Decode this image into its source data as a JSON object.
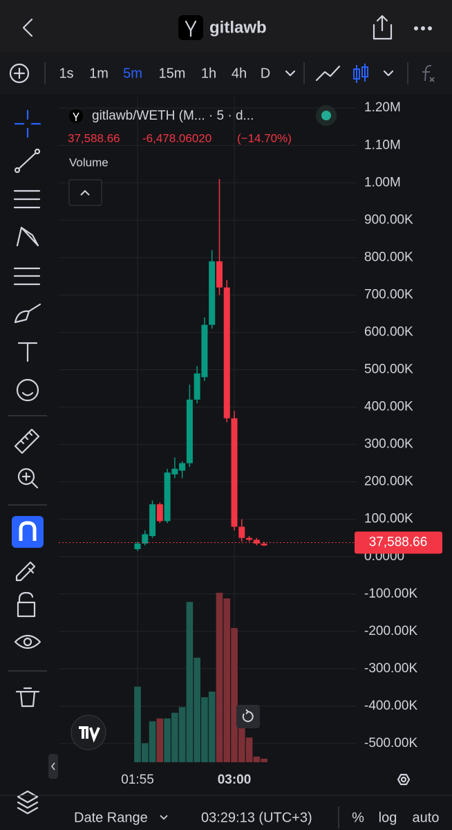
{
  "header": {
    "title": "gitlawb"
  },
  "toolbar": {
    "intervals": [
      "1s",
      "1m",
      "5m",
      "15m",
      "1h",
      "4h",
      "D"
    ],
    "active_interval": "5m"
  },
  "legend": {
    "symbol": "gitlawb/WETH (M... · 5 · d...",
    "price": "37,588.66",
    "change": "-6,478.06020",
    "change_pct": "(−14.70%)",
    "volume": "Volume"
  },
  "chart_data": {
    "type": "candlestick",
    "x": [
      "01:55",
      null,
      null,
      null,
      null,
      null,
      null,
      null,
      null,
      null,
      null,
      null,
      null,
      "03:00",
      null,
      null,
      null,
      null
    ],
    "open": [
      20000,
      35000,
      55000,
      140000,
      95000,
      220000,
      230000,
      250000,
      420000,
      480000,
      620000,
      790000,
      720000,
      370000,
      80000,
      50000,
      45000,
      35000
    ],
    "high": [
      40000,
      70000,
      150000,
      145000,
      235000,
      265000,
      255000,
      460000,
      510000,
      640000,
      820000,
      1010000,
      740000,
      390000,
      100000,
      55000,
      50000,
      40000
    ],
    "low": [
      15000,
      30000,
      50000,
      90000,
      90000,
      210000,
      210000,
      240000,
      410000,
      470000,
      610000,
      700000,
      360000,
      70000,
      40000,
      40000,
      30000,
      28000
    ],
    "close": [
      35000,
      60000,
      140000,
      95000,
      225000,
      235000,
      250000,
      420000,
      490000,
      620000,
      790000,
      720000,
      370000,
      80000,
      50000,
      45000,
      35000,
      30000
    ],
    "volume": [
      107,
      27,
      58,
      62,
      62,
      70,
      78,
      227,
      148,
      92,
      100,
      240,
      232,
      190,
      70,
      35,
      8,
      5
    ],
    "up_color": "#089981",
    "down_color": "#f23645",
    "volume_up_color": "#1f5d53",
    "volume_down_color": "#7d2f36",
    "ylim": [
      -550000,
      1230000
    ],
    "yticks": [
      {
        "value": 1200000,
        "label": "1.20M"
      },
      {
        "value": 1100000,
        "label": "1.10M"
      },
      {
        "value": 1000000,
        "label": "1.00M"
      },
      {
        "value": 900000,
        "label": "900.00K"
      },
      {
        "value": 800000,
        "label": "800.00K"
      },
      {
        "value": 700000,
        "label": "700.00K"
      },
      {
        "value": 600000,
        "label": "600.00K"
      },
      {
        "value": 500000,
        "label": "500.00K"
      },
      {
        "value": 400000,
        "label": "400.00K"
      },
      {
        "value": 300000,
        "label": "300.00K"
      },
      {
        "value": 200000,
        "label": "200.00K"
      },
      {
        "value": 100000,
        "label": "100.00K"
      },
      {
        "value": 0,
        "label": "0.0000"
      },
      {
        "value": -100000,
        "label": "-100.00K"
      },
      {
        "value": -200000,
        "label": "-200.00K"
      },
      {
        "value": -300000,
        "label": "-300.00K"
      },
      {
        "value": -400000,
        "label": "-400.00K"
      },
      {
        "value": -500000,
        "label": "-500.00K"
      }
    ],
    "last_price": {
      "value": 37588.66,
      "label": "37,588.66"
    },
    "grid": true
  },
  "footer": {
    "date_range": "Date Range",
    "time": "03:29:13 (UTC+3)",
    "percent": "%",
    "log": "log",
    "auto": "auto"
  }
}
